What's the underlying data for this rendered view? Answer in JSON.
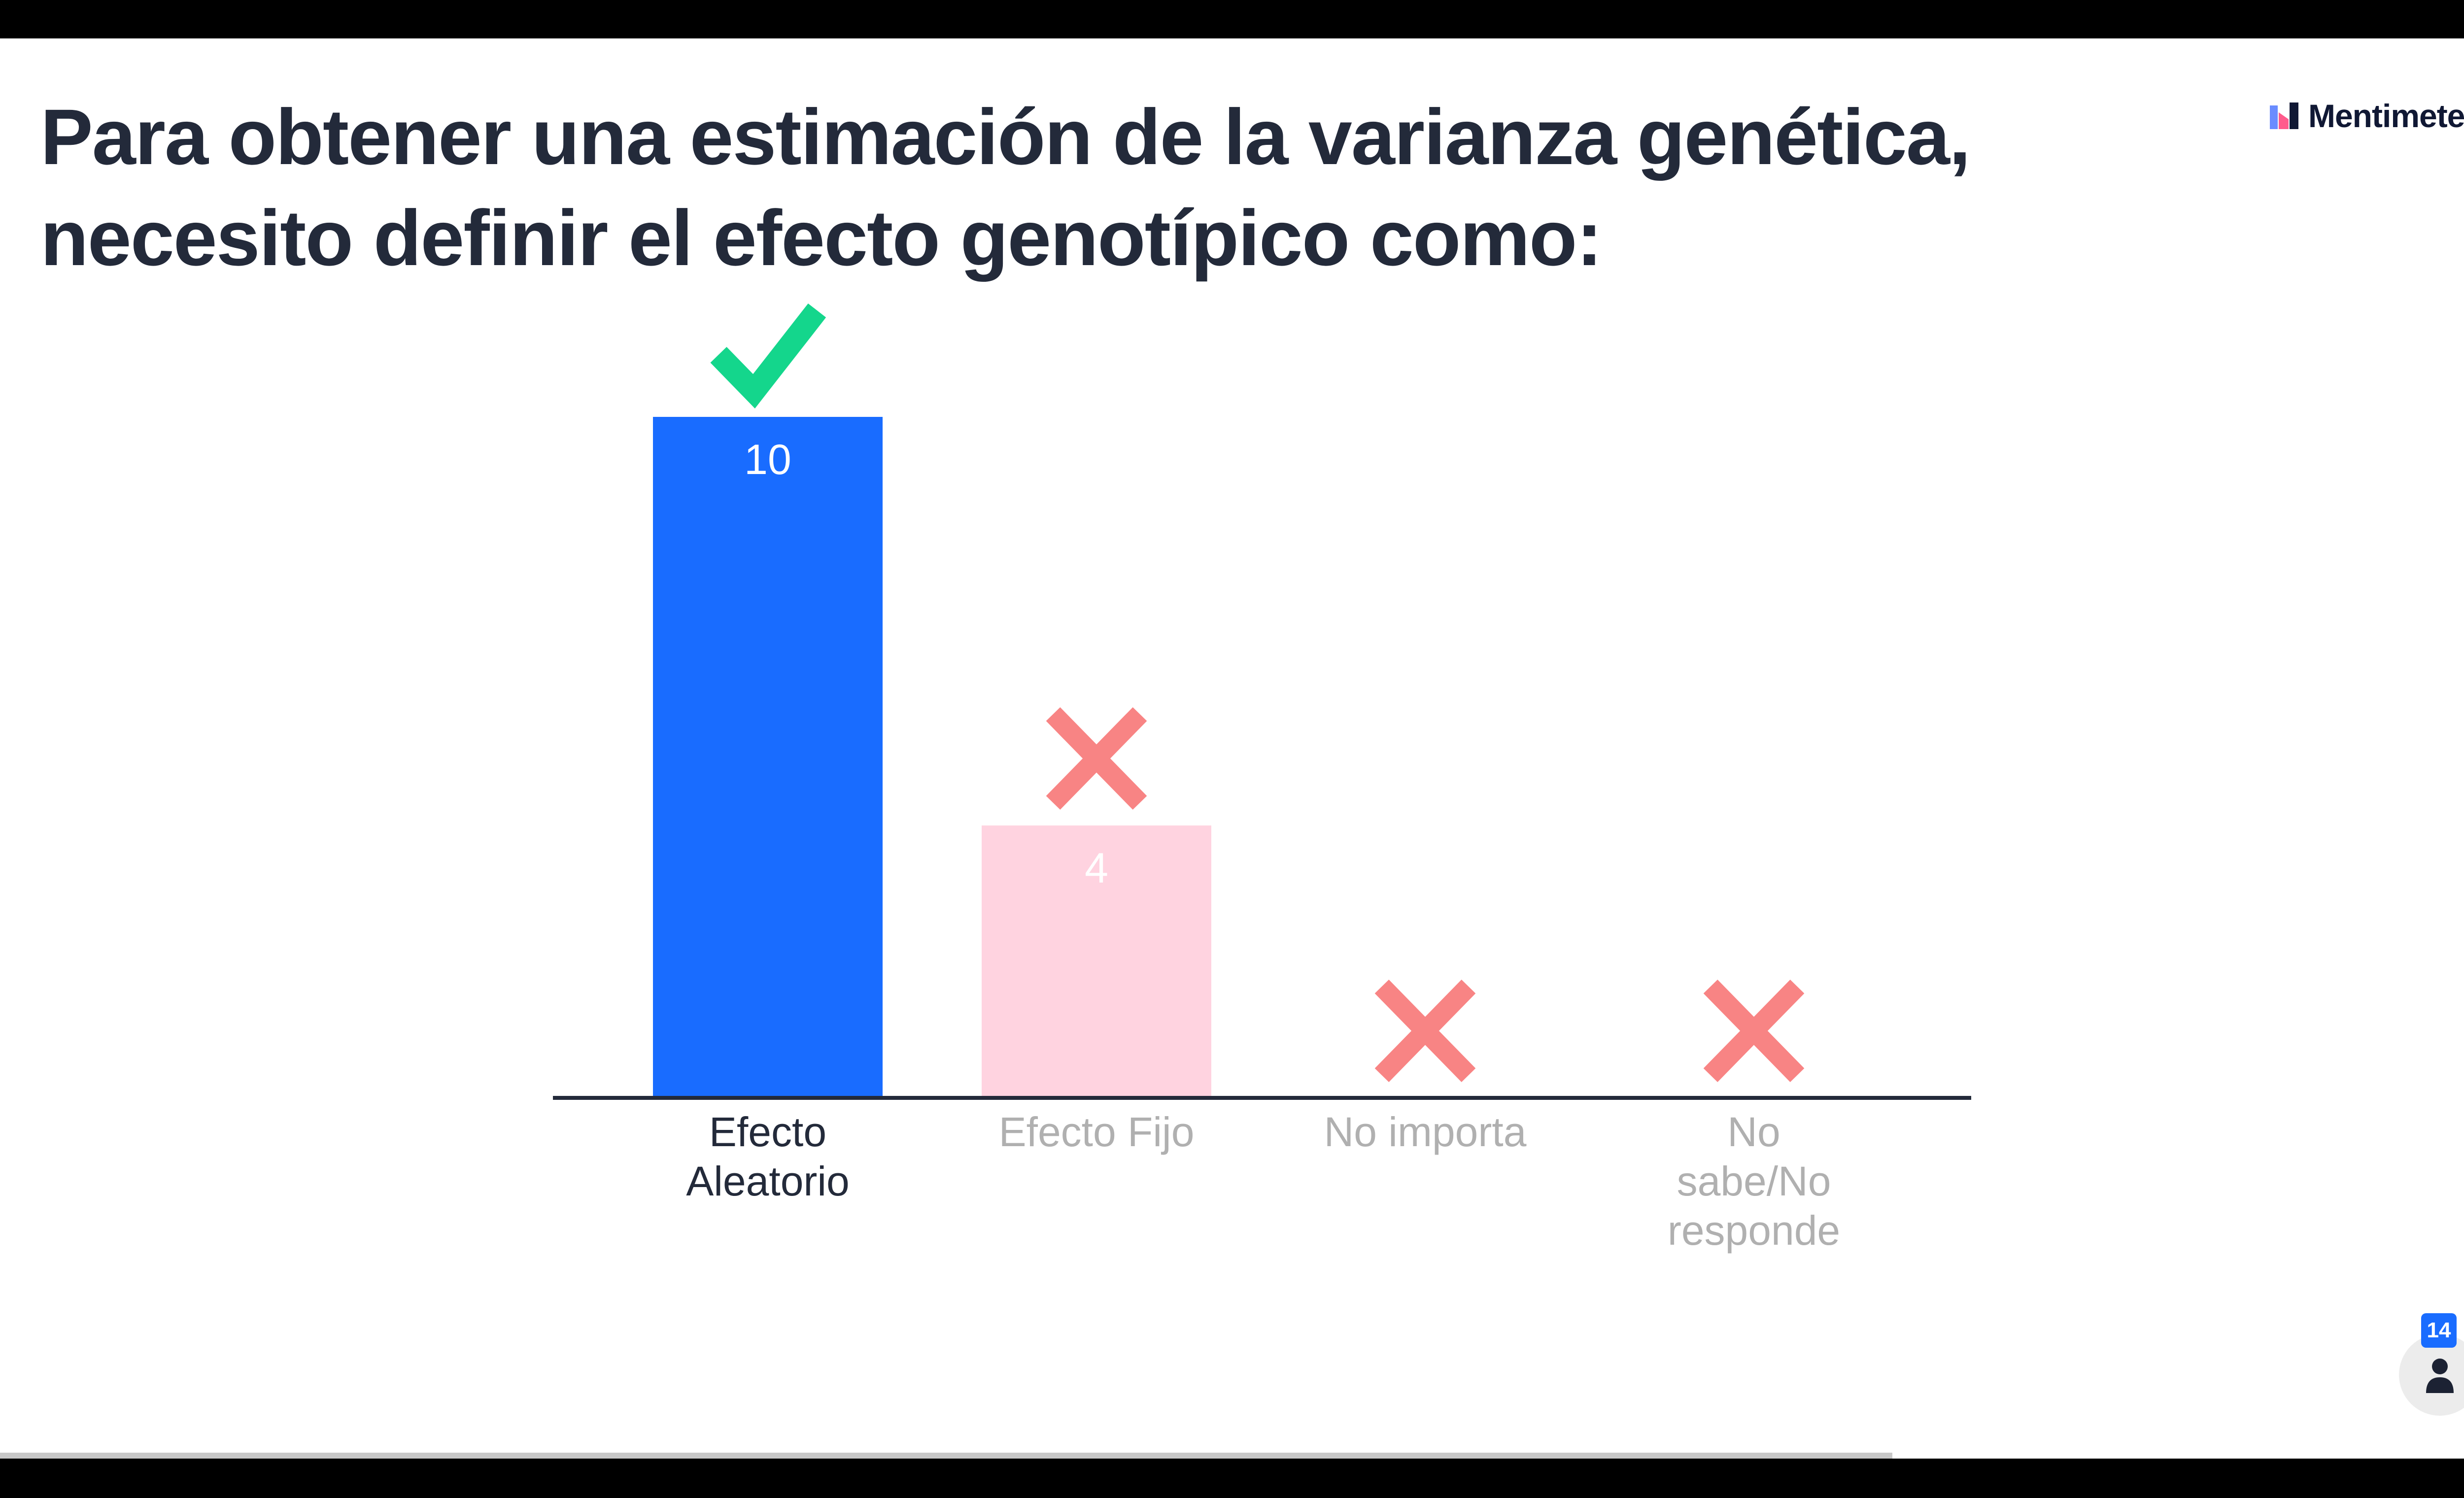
{
  "question": {
    "title": "Para obtener una estimación de la varianza genética, necesito definir el efecto genotípico como:"
  },
  "brand": {
    "name": "Mentimeter"
  },
  "participants": {
    "count": "14",
    "icon": "person-icon"
  },
  "presentation": {
    "progress": 0.75
  },
  "colors": {
    "correct_bar": "#196cff",
    "incorrect_bar": "#ffd3e0",
    "correct_mark": "#14d68c",
    "incorrect_mark": "#f88484",
    "axis": "#232a3a",
    "title": "#232a3a",
    "label_active": "#232a3a",
    "label_muted": "#b0b0b0"
  },
  "chart_data": {
    "type": "bar",
    "title": "",
    "xlabel": "",
    "ylabel": "",
    "ylim": [
      0,
      10
    ],
    "grid": false,
    "categories": [
      [
        "Efecto",
        "Aleatorio"
      ],
      [
        "Efecto Fijo"
      ],
      [
        "No importa"
      ],
      [
        "No",
        "sabe/No",
        "responde"
      ]
    ],
    "values": [
      10,
      4,
      0,
      0
    ],
    "value_labels": [
      "10",
      "4",
      "",
      ""
    ],
    "correct": [
      true,
      false,
      false,
      false
    ]
  }
}
